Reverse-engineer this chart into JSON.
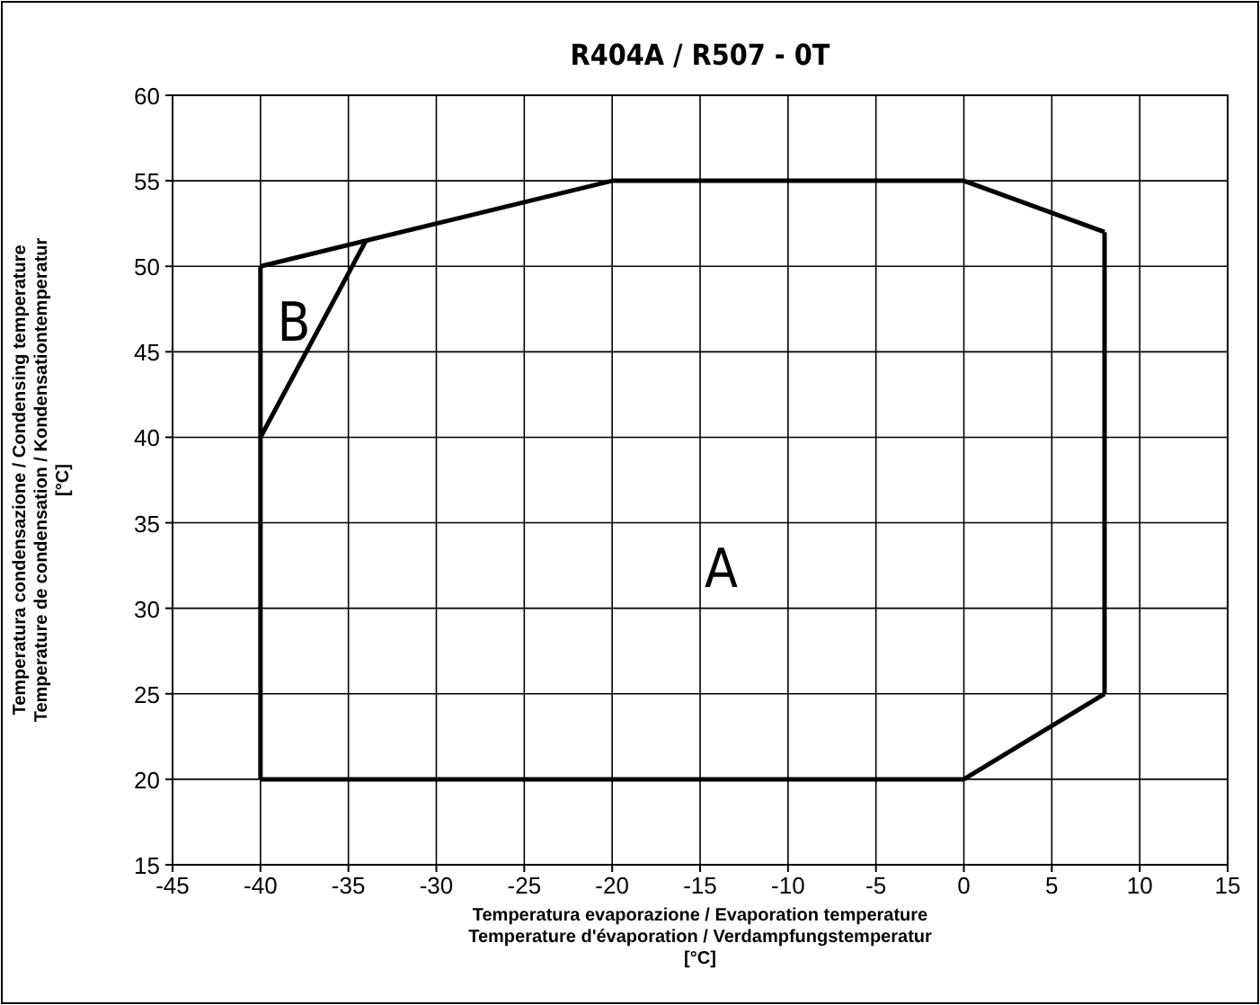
{
  "chart_data": {
    "type": "line",
    "title": "R404A / R507 - 0T",
    "xlabel": "Temperatura evaporazione / Evaporation temperature\nTemperature d'évaporation / Verdampfungstemperatur\n[°C]",
    "ylabel": "Temperatura condensazione / Condensing temperature\nTemperature de condensation / Kondensationtemperatur\n[°C]",
    "xlim": [
      -45,
      15
    ],
    "xticks": [
      -45,
      -40,
      -35,
      -30,
      -25,
      -20,
      -15,
      -10,
      -5,
      0,
      5,
      10,
      15
    ],
    "ylim": [
      15,
      60
    ],
    "yticks": [
      15,
      20,
      25,
      30,
      35,
      40,
      45,
      50,
      55,
      60
    ],
    "grid": true,
    "marker": "none",
    "line_style": "solid",
    "series": [
      {
        "color": "#000000",
        "x": [
          -40,
          -20,
          0,
          8
        ],
        "values": [
          50,
          55,
          55,
          52
        ]
      },
      {
        "color": "#000000",
        "x": [
          -40,
          0,
          8
        ],
        "values": [
          20,
          20,
          25
        ]
      },
      {
        "color": "#000000",
        "x": [
          -40,
          -40
        ],
        "values": [
          20,
          50
        ]
      },
      {
        "color": "#000000",
        "x": [
          8,
          8
        ],
        "values": [
          25,
          52
        ]
      },
      {
        "color": "#000000",
        "x": [
          -40,
          -34
        ],
        "values": [
          40,
          51.5
        ]
      }
    ],
    "annotations": [
      "A",
      "B"
    ]
  }
}
